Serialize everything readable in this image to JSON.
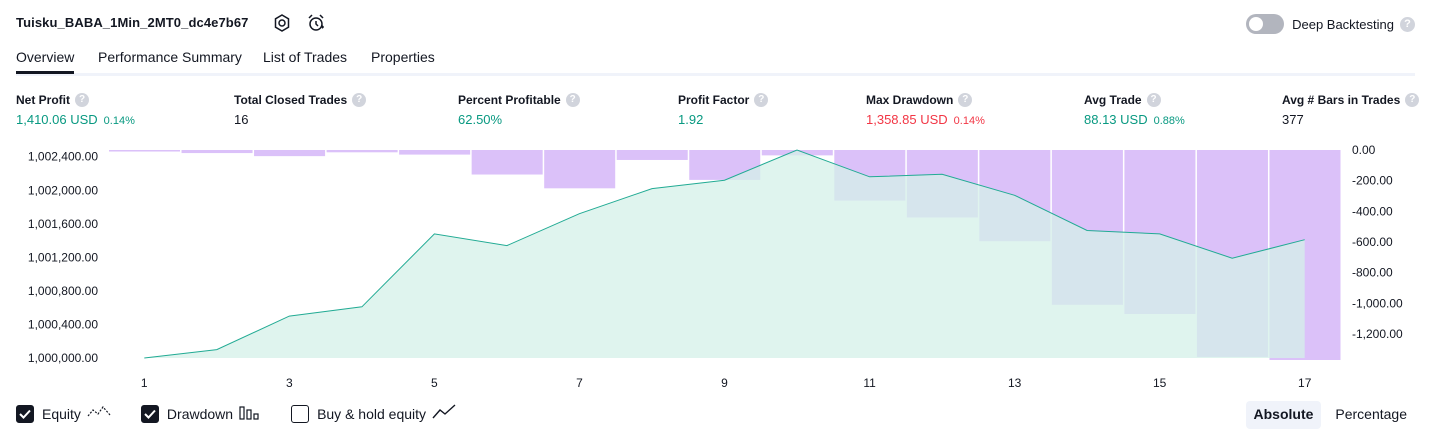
{
  "header": {
    "strategy_name": "Tuisku_BABA_1Min_2MT0_dc4e7b67",
    "deep_backtesting_label": "Deep Backtesting",
    "help_glyph": "?"
  },
  "tabs": [
    {
      "label": "Overview",
      "active": true
    },
    {
      "label": "Performance Summary",
      "active": false
    },
    {
      "label": "List of Trades",
      "active": false
    },
    {
      "label": "Properties",
      "active": false
    }
  ],
  "metrics": [
    {
      "label": "Net Profit",
      "value": "1,410.06 USD",
      "pct": "0.14%",
      "color": "green"
    },
    {
      "label": "Total Closed Trades",
      "value": "16",
      "pct": "",
      "color": "dark"
    },
    {
      "label": "Percent Profitable",
      "value": "62.50%",
      "pct": "",
      "color": "green"
    },
    {
      "label": "Profit Factor",
      "value": "1.92",
      "pct": "",
      "color": "green"
    },
    {
      "label": "Max Drawdown",
      "value": "1,358.85 USD",
      "pct": "0.14%",
      "color": "red"
    },
    {
      "label": "Avg Trade",
      "value": "88.13 USD",
      "pct": "0.88%",
      "color": "green"
    },
    {
      "label": "Avg # Bars in Trades",
      "value": "377",
      "pct": "",
      "color": "dark"
    }
  ],
  "chart_data": {
    "type": "area",
    "x": [
      1,
      2,
      3,
      4,
      5,
      6,
      7,
      8,
      9,
      10,
      11,
      12,
      13,
      14,
      15,
      16,
      17
    ],
    "x_tick_labels": [
      "1",
      "3",
      "5",
      "7",
      "9",
      "11",
      "13",
      "15",
      "17"
    ],
    "series": [
      {
        "name": "Equity",
        "type": "area",
        "axis": "left",
        "values": [
          1000000,
          1000100,
          1000500,
          1000610,
          1001480,
          1001340,
          1001720,
          1002020,
          1002120,
          1002480,
          1002160,
          1002190,
          1001940,
          1001520,
          1001480,
          1001190,
          1001410
        ]
      },
      {
        "name": "Drawdown",
        "type": "bar",
        "axis": "right",
        "values": [
          -10,
          -20,
          -40,
          -15,
          -30,
          -160,
          -250,
          -65,
          -195,
          -35,
          -330,
          -440,
          -595,
          -1010,
          -1070,
          -1350,
          -1370
        ]
      }
    ],
    "left_axis": {
      "ylim": [
        1000000,
        1002480
      ],
      "tick_labels": [
        "1,002,400.00",
        "1,002,000.00",
        "1,001,600.00",
        "1,001,200.00",
        "1,000,800.00",
        "1,000,400.00",
        "1,000,000.00"
      ]
    },
    "right_axis": {
      "ylim": [
        -1370,
        0
      ],
      "tick_labels": [
        "0.00",
        "-200.00",
        "-400.00",
        "-600.00",
        "-800.00",
        "-1,000.00",
        "-1,200.00"
      ]
    },
    "colors": {
      "equity_line": "#22ab94",
      "equity_fill": "#d4f0e8",
      "drawdown": "#c398f5"
    }
  },
  "legend": {
    "equity_label": "Equity",
    "drawdown_label": "Drawdown",
    "buyhold_label": "Buy & hold equity"
  },
  "mode": {
    "absolute_label": "Absolute",
    "percentage_label": "Percentage"
  }
}
